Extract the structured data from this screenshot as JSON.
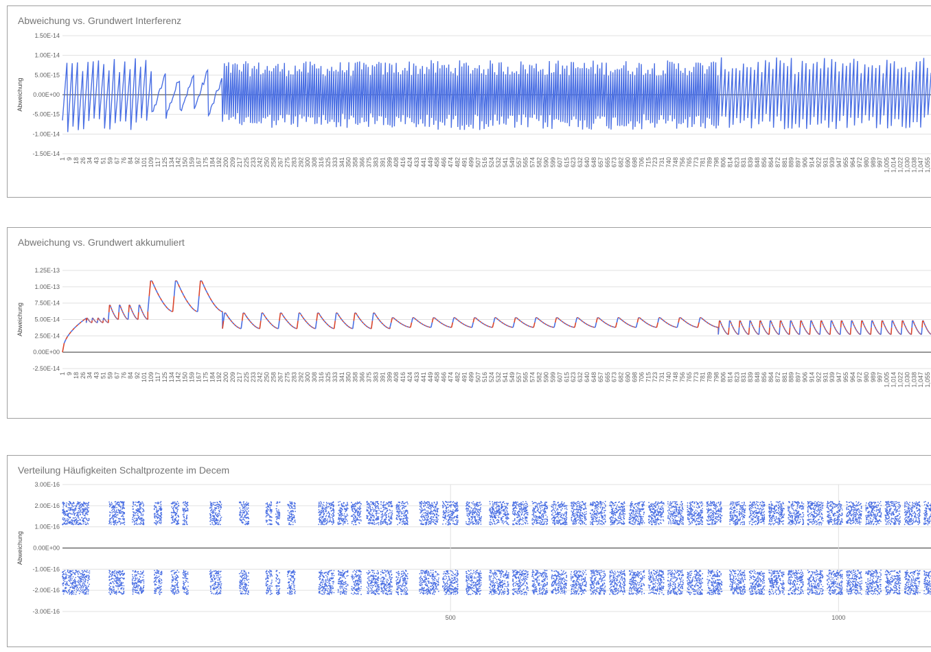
{
  "chart_data": [
    {
      "type": "line",
      "title": "Abweichung vs. Grundwert Interferenz",
      "xlabel": "",
      "ylabel": "Abweichung",
      "ylim": [
        -1.5e-14,
        1.5e-14
      ],
      "y_ticks": [
        "1.50E-14",
        "1.00E-14",
        "5.00E-15",
        "0.00E+00",
        "-5.00E-15",
        "-1.00E-14",
        "-1.50E-14"
      ],
      "x_range": [
        1,
        1060
      ],
      "x_tick_start": 1,
      "x_tick_step": 8.3,
      "grid": true,
      "legend": "none",
      "colors": {
        "series": "#4a6fe3",
        "zero_line": "#333333",
        "grid": "#e0e0e0"
      },
      "series": [
        {
          "segments": [
            {
              "x0": 1,
              "x1": 110,
              "peak": 9.6e-15,
              "amp_neg": -9.5e-15,
              "cycles": 17
            },
            {
              "x0": 110,
              "x1": 196,
              "peak": 7e-15,
              "amp_neg": -6.6e-15,
              "cycles": 5
            },
            {
              "x0": 196,
              "x1": 400,
              "peak": 8.5e-15,
              "amp_neg": -8.5e-15,
              "cycles": 78
            },
            {
              "x0": 400,
              "x1": 800,
              "peak": 8.8e-15,
              "amp_neg": -9e-15,
              "cycles": 150
            },
            {
              "x0": 800,
              "x1": 1060,
              "peak": 9.5e-15,
              "amp_neg": -8.8e-15,
              "cycles": 58
            }
          ]
        }
      ]
    },
    {
      "type": "line",
      "title": "Abweichung vs. Grundwert akkumuliert",
      "xlabel": "",
      "ylabel": "Abweichung",
      "ylim": [
        -2.5e-14,
        1.25e-13
      ],
      "y_ticks": [
        "1.25E-13",
        "1.00E-13",
        "7.50E-14",
        "5.00E-14",
        "2.50E-14",
        "0.00E+00",
        "-2.50E-14"
      ],
      "x_range": [
        1,
        1060
      ],
      "x_tick_start": 1,
      "x_tick_step": 8.3,
      "grid": true,
      "legend": "none",
      "colors": {
        "series_a": "#4a6fe3",
        "series_b": "#d9442b",
        "zero_line": "#333333",
        "grid": "#e0e0e0"
      },
      "series": [
        {
          "peaks": [
            {
              "x0": 1,
              "x1": 30,
              "start": 0,
              "end": 5.2e-14
            },
            {
              "x0": 30,
              "x1": 57,
              "base": 4.5e-14,
              "peak": 5.3e-14,
              "cycles": 4
            },
            {
              "x0": 57,
              "x1": 105,
              "base": 5e-14,
              "peak": 7.4e-14,
              "cycles": 4
            },
            {
              "x0": 105,
              "x1": 196,
              "base": 6.2e-14,
              "peak": 1.13e-13,
              "cycles": 3
            },
            {
              "x0": 196,
              "x1": 400,
              "base": 3.6e-14,
              "peak": 6.2e-14,
              "cycles": 9
            },
            {
              "x0": 400,
              "x1": 800,
              "base": 3.8e-14,
              "peak": 5.4e-14,
              "cycles": 16
            },
            {
              "x0": 800,
              "x1": 1060,
              "base": 2.7e-14,
              "peak": 5e-14,
              "cycles": 21
            }
          ]
        }
      ]
    },
    {
      "type": "scatter",
      "title": "Verteilung Häufigkeiten Schaltprozente im Decem",
      "xlabel": "",
      "ylabel": "Abweichung",
      "ylim": [
        -3e-16,
        3e-16
      ],
      "xlim": [
        0,
        1120
      ],
      "y_ticks": [
        "3.00E-16",
        "2.00E-16",
        "1.00E-16",
        "0.00E+00",
        "-1.00E-16",
        "-2.00E-16",
        "-3.00E-16"
      ],
      "x_ticks": [
        500,
        1000
      ],
      "grid": true,
      "legend": "none",
      "colors": {
        "points": "#4a6fe3",
        "zero_line": "#333333",
        "grid": "#e0e0e0"
      },
      "bands": [
        {
          "ymin": 1.1e-16,
          "ymax": 2.2e-16
        },
        {
          "ymin": -2.2e-16,
          "ymax": -1.05e-16
        }
      ],
      "clusters_x": [
        [
          0,
          35
        ],
        [
          60,
          70
        ],
        [
          70,
          80
        ],
        [
          90,
          100
        ],
        [
          100,
          105
        ],
        [
          118,
          128
        ],
        [
          140,
          150
        ],
        [
          155,
          162
        ],
        [
          190,
          205
        ],
        [
          228,
          240
        ],
        [
          262,
          270
        ],
        [
          275,
          280
        ],
        [
          290,
          300
        ],
        [
          330,
          350
        ],
        [
          355,
          368
        ],
        [
          372,
          385
        ],
        [
          392,
          408
        ],
        [
          410,
          425
        ],
        [
          430,
          445
        ],
        [
          460,
          485
        ],
        [
          490,
          510
        ],
        [
          520,
          540
        ],
        [
          550,
          575
        ],
        [
          580,
          600
        ],
        [
          605,
          625
        ],
        [
          630,
          650
        ],
        [
          655,
          675
        ],
        [
          680,
          700
        ],
        [
          705,
          725
        ],
        [
          730,
          750
        ],
        [
          755,
          775
        ],
        [
          780,
          800
        ],
        [
          805,
          825
        ],
        [
          830,
          850
        ],
        [
          860,
          880
        ],
        [
          885,
          905
        ],
        [
          910,
          930
        ],
        [
          935,
          955
        ],
        [
          960,
          980
        ],
        [
          985,
          1005
        ],
        [
          1010,
          1030
        ],
        [
          1035,
          1055
        ],
        [
          1060,
          1080
        ],
        [
          1085,
          1105
        ],
        [
          1110,
          1120
        ]
      ]
    }
  ]
}
